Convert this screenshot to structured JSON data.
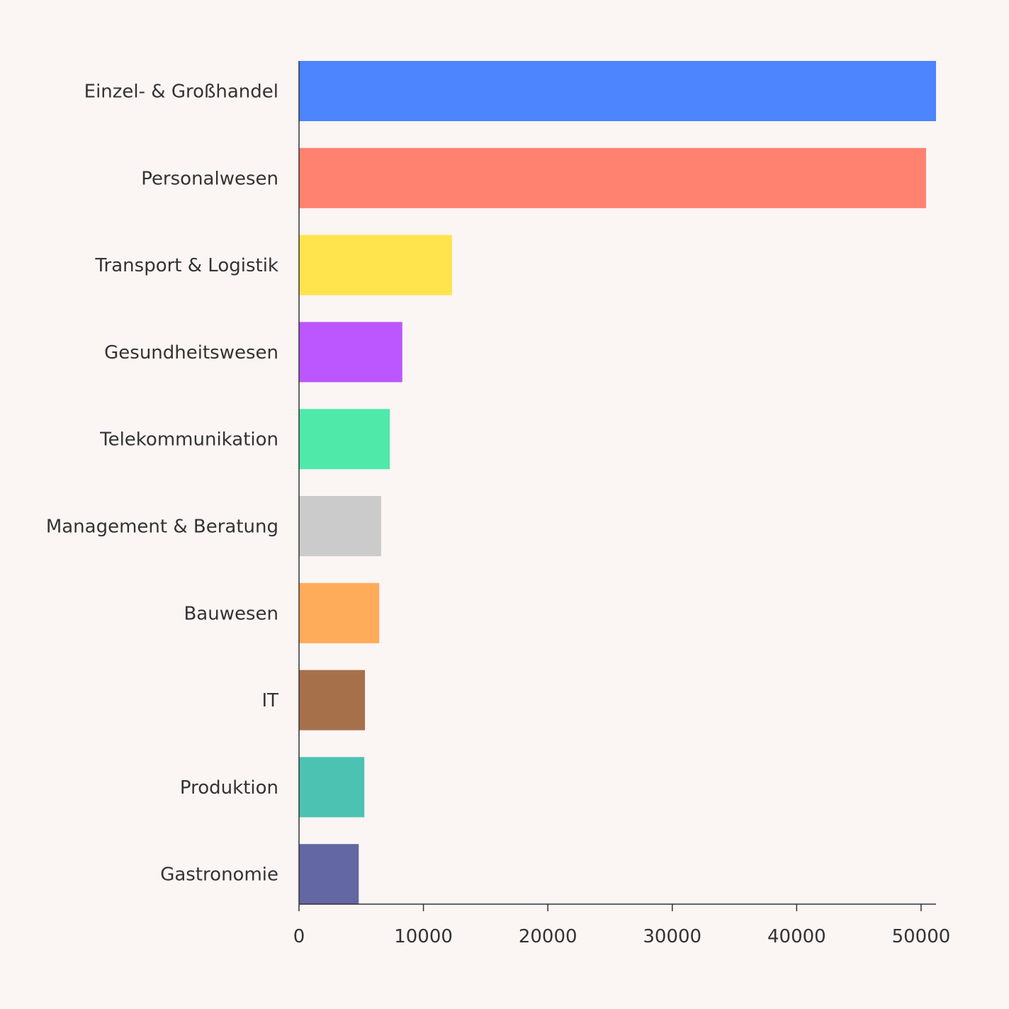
{
  "chart_data": {
    "type": "bar",
    "orientation": "horizontal",
    "categories": [
      "Einzel- & Großhandel",
      "Personalwesen",
      "Transport & Logistik",
      "Gesundheitswesen",
      "Telekommunikation",
      "Management & Beratung",
      "Bauwesen",
      "IT",
      "Produktion",
      "Gastronomie"
    ],
    "values": [
      51200,
      50400,
      12300,
      8300,
      7300,
      6600,
      6450,
      5300,
      5250,
      4800
    ],
    "colors": [
      "#4d84ff",
      "#ff8270",
      "#ffe44d",
      "#bc56ff",
      "#4fe9aa",
      "#cbcbcb",
      "#ffac5a",
      "#a6714a",
      "#4cc2b3",
      "#6367a3"
    ],
    "xlim": [
      0,
      51200
    ],
    "xticks": [
      0,
      10000,
      20000,
      30000,
      40000,
      50000
    ],
    "xtick_labels": [
      "0",
      "10000",
      "20000",
      "30000",
      "40000",
      "50000"
    ],
    "title": "",
    "xlabel": "",
    "ylabel": "",
    "grid": false,
    "legend": "none"
  }
}
